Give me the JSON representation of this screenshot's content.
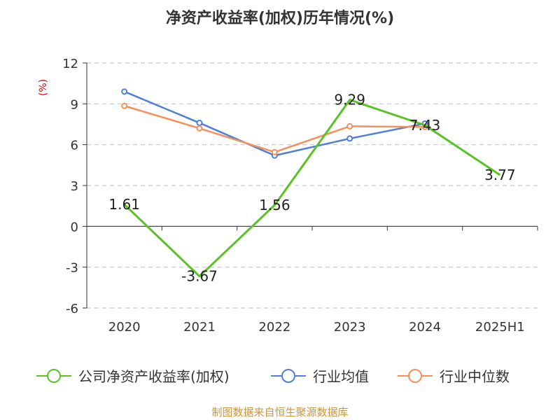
{
  "chart_data": {
    "type": "line",
    "title": "净资产收益率(加权)历年情况(%)",
    "ylabel": "(%)",
    "categories": [
      "2020",
      "2021",
      "2022",
      "2023",
      "2024",
      "2025H1"
    ],
    "ylim": [
      -6,
      12
    ],
    "yticks": [
      "12",
      "9",
      "6",
      "3",
      "0",
      "-3",
      "-6"
    ],
    "ytick_values": [
      12,
      9,
      6,
      3,
      0,
      -3,
      -6
    ],
    "grid": true,
    "legend_position": "bottom",
    "series": [
      {
        "name": "公司净资产收益率(加权)",
        "color": "#5bc226",
        "values": [
          1.61,
          -3.67,
          1.56,
          9.29,
          7.43,
          3.77
        ],
        "labels": [
          "1.61",
          "-3.67",
          "1.56",
          "9.29",
          "7.43",
          "3.77"
        ]
      },
      {
        "name": "行业均值",
        "color": "#4f7fdb",
        "values": [
          9.9,
          7.6,
          5.2,
          6.45,
          7.55,
          null
        ]
      },
      {
        "name": "行业中位数",
        "color": "#f5905a",
        "values": [
          8.85,
          7.2,
          5.45,
          7.35,
          7.3,
          null
        ]
      }
    ]
  },
  "source_text": "制图数据来自恒生聚源数据库"
}
